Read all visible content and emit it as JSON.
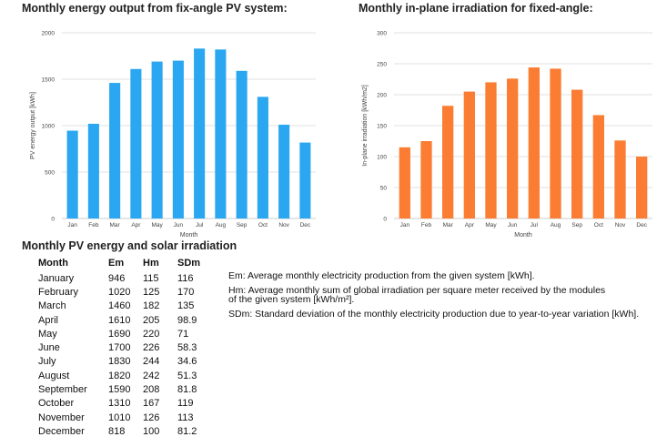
{
  "charts_titles": {
    "energy": "Monthly energy output from fix-angle PV system:",
    "irradiation": "Monthly in-plane irradiation for fixed-angle:"
  },
  "chart_data": [
    {
      "type": "bar",
      "title": "Monthly energy output from fix-angle PV system:",
      "categories": [
        "Jan",
        "Feb",
        "Mar",
        "Apr",
        "May",
        "Jun",
        "Jul",
        "Aug",
        "Sep",
        "Oct",
        "Nov",
        "Dec"
      ],
      "values": [
        946,
        1020,
        1460,
        1610,
        1690,
        1700,
        1830,
        1820,
        1590,
        1310,
        1010,
        818
      ],
      "xlabel": "Month",
      "ylabel": "PV energy output [kWh]",
      "ylim": [
        0,
        2000
      ],
      "yticks": [
        0,
        500,
        1000,
        1500,
        2000
      ],
      "color": "#2aa7f0",
      "grid": true
    },
    {
      "type": "bar",
      "title": "Monthly in-plane irradiation for fixed-angle:",
      "categories": [
        "Jan",
        "Feb",
        "Mar",
        "Apr",
        "May",
        "Jun",
        "Jul",
        "Aug",
        "Sep",
        "Oct",
        "Nov",
        "Dec"
      ],
      "values": [
        115,
        125,
        182,
        205,
        220,
        226,
        244,
        242,
        208,
        167,
        126,
        100
      ],
      "xlabel": "Month",
      "ylabel": "In-plane irradiation [kWh/m2]",
      "ylim": [
        0,
        300
      ],
      "yticks": [
        0,
        50,
        100,
        150,
        200,
        250,
        300
      ],
      "color": "#fa7d33",
      "grid": true
    }
  ],
  "table": {
    "title": "Monthly PV energy and solar irradiation",
    "headers": [
      "Month",
      "Em",
      "Hm",
      "SDm"
    ],
    "rows": [
      [
        "January",
        "946",
        "115",
        "116"
      ],
      [
        "February",
        "1020",
        "125",
        "170"
      ],
      [
        "March",
        "1460",
        "182",
        "135"
      ],
      [
        "April",
        "1610",
        "205",
        "98.9"
      ],
      [
        "May",
        "1690",
        "220",
        "71"
      ],
      [
        "June",
        "1700",
        "226",
        "58.3"
      ],
      [
        "July",
        "1830",
        "244",
        "34.6"
      ],
      [
        "August",
        "1820",
        "242",
        "51.3"
      ],
      [
        "September",
        "1590",
        "208",
        "81.8"
      ],
      [
        "October",
        "1310",
        "167",
        "119"
      ],
      [
        "November",
        "1010",
        "126",
        "113"
      ],
      [
        "December",
        "818",
        "100",
        "81.2"
      ]
    ]
  },
  "legend": {
    "em": "Em: Average monthly electricity production from the given system [kWh].",
    "hm_line1": "Hm: Average monthly sum of global irradiation per square meter received by the modules",
    "hm_line2": "of the given system [kWh/m²].",
    "sdm": "SDm: Standard deviation of the monthly electricity production due to year-to-year variation [kWh]."
  }
}
